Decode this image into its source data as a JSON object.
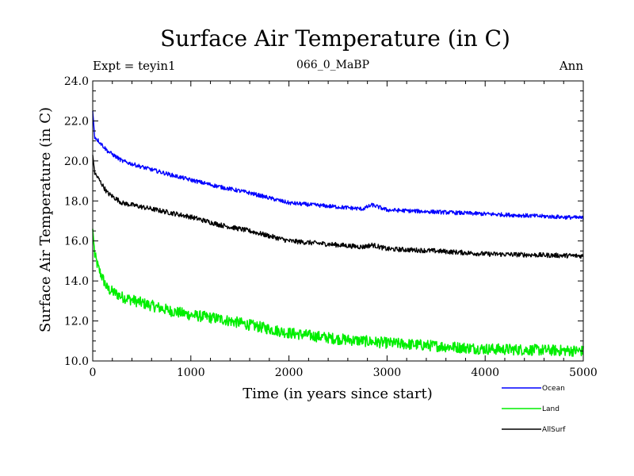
{
  "chart_data": {
    "type": "line",
    "title": "Surface Air Temperature (in C)",
    "subtitle_left": "Expt = teyin1",
    "subtitle_center": "066_0_MaBP",
    "subtitle_right": "Ann",
    "xlabel": "Time (in years since start)",
    "ylabel": "Surface Air Temperature (in C)",
    "xlim": [
      0,
      5000
    ],
    "ylim": [
      10,
      24
    ],
    "xticks": [
      0,
      1000,
      2000,
      3000,
      4000,
      5000
    ],
    "xtick_labels": [
      "0",
      "1000",
      "2000",
      "3000",
      "4000",
      "5000"
    ],
    "yticks": [
      10,
      12,
      14,
      16,
      18,
      20,
      22,
      24
    ],
    "ytick_labels": [
      "10.0",
      "12.0",
      "14.0",
      "16.0",
      "18.0",
      "20.0",
      "22.0",
      "24.0"
    ],
    "legend_position": "bottom-right outside",
    "series": [
      {
        "name": "Ocean",
        "color": "#0000ff",
        "noise": 0.1,
        "x": [
          0,
          20,
          60,
          150,
          300,
          500,
          800,
          1000,
          1300,
          1600,
          2000,
          2500,
          2750,
          2850,
          3000,
          3500,
          4000,
          4500,
          5000
        ],
        "values": [
          22.5,
          21.2,
          21.0,
          20.5,
          20.0,
          19.7,
          19.3,
          19.05,
          18.7,
          18.4,
          17.9,
          17.7,
          17.6,
          17.8,
          17.55,
          17.45,
          17.35,
          17.25,
          17.15
        ]
      },
      {
        "name": "Land",
        "color": "#00ee00",
        "noise": 0.28,
        "x": [
          0,
          20,
          60,
          150,
          300,
          500,
          800,
          1000,
          1300,
          1600,
          2000,
          2500,
          3000,
          3500,
          4000,
          4500,
          5000
        ],
        "values": [
          16.6,
          15.3,
          14.6,
          13.6,
          13.2,
          12.9,
          12.5,
          12.3,
          12.1,
          11.8,
          11.4,
          11.1,
          10.9,
          10.75,
          10.6,
          10.55,
          10.5
        ]
      },
      {
        "name": "AllSurf",
        "color": "#000000",
        "noise": 0.12,
        "x": [
          0,
          20,
          60,
          150,
          300,
          500,
          800,
          1000,
          1300,
          1600,
          2000,
          2500,
          2750,
          2850,
          3000,
          3500,
          4000,
          4500,
          5000
        ],
        "values": [
          20.3,
          19.4,
          19.1,
          18.4,
          17.9,
          17.7,
          17.4,
          17.2,
          16.8,
          16.5,
          16.0,
          15.8,
          15.7,
          15.8,
          15.6,
          15.5,
          15.35,
          15.3,
          15.25
        ]
      }
    ]
  }
}
